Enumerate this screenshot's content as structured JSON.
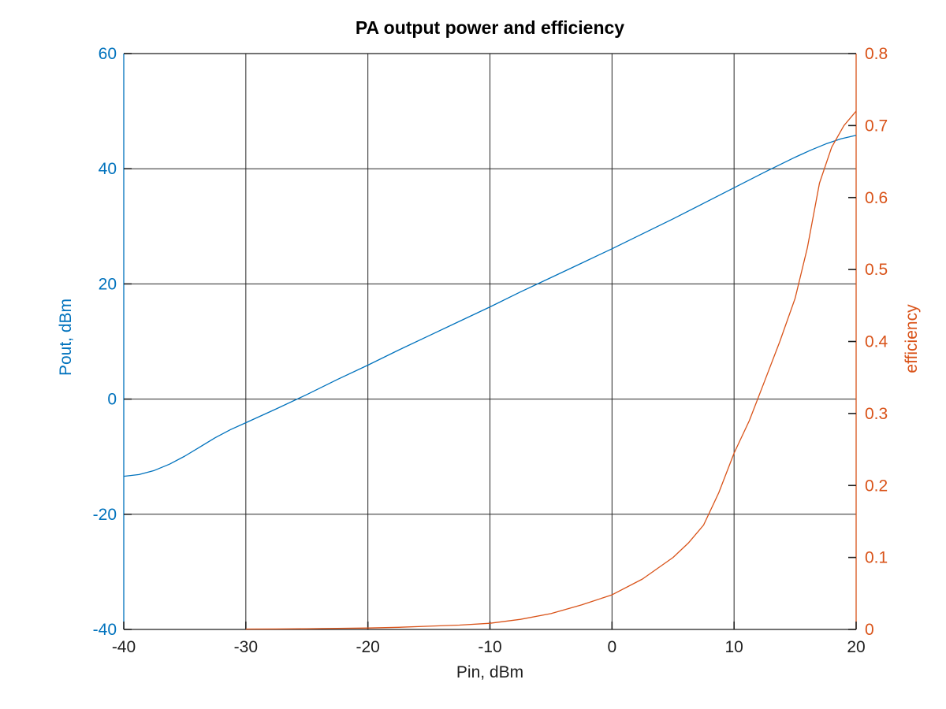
{
  "title": "PA output power and efficiency",
  "axes": {
    "x": {
      "label": "Pin, dBm",
      "min": -40,
      "max": 20,
      "ticks": [
        -40,
        -30,
        -20,
        -10,
        0,
        10,
        20
      ],
      "tick_labels": [
        "-40",
        "-30",
        "-20",
        "-10",
        "0",
        "10",
        "20"
      ],
      "grid": [
        -30,
        -20,
        -10,
        0,
        10
      ]
    },
    "y_left": {
      "label": "Pout, dBm",
      "min": -40,
      "max": 60,
      "ticks": [
        -40,
        -20,
        0,
        20,
        40,
        60
      ],
      "tick_labels": [
        "-40",
        "-20",
        "0",
        "20",
        "40",
        "60"
      ],
      "grid": [
        -20,
        0,
        20,
        40
      ],
      "color": "#0072BD"
    },
    "y_right": {
      "label": "efficiency",
      "min": 0,
      "max": 0.8,
      "ticks": [
        0,
        0.1,
        0.2,
        0.3,
        0.4,
        0.5,
        0.6,
        0.7,
        0.8
      ],
      "tick_labels": [
        "0",
        "0.1",
        "0.2",
        "0.3",
        "0.4",
        "0.5",
        "0.6",
        "0.7",
        "0.8"
      ],
      "grid": [],
      "color": "#D95319"
    }
  },
  "colors": {
    "box": "#1f1f1f",
    "grid": "#262626",
    "tick": "#1f1f1f",
    "x_tick_text": "#1f1f1f",
    "left_series": "#0072BD",
    "right_series": "#D95319"
  },
  "chart_data": {
    "type": "line",
    "title": "PA output power and efficiency",
    "xlabel": "Pin, dBm",
    "ylabel_left": "Pout, dBm",
    "ylabel_right": "efficiency",
    "x_range": [
      -40,
      20
    ],
    "y_left_range": [
      -40,
      60
    ],
    "y_right_range": [
      0,
      0.8
    ],
    "grid": "on",
    "legend": "none",
    "series": [
      {
        "name": "Pout, dBm",
        "axis": "left",
        "color": "#0072BD",
        "x": [
          -40,
          -38.75,
          -37.5,
          -36.25,
          -35,
          -33.75,
          -32.5,
          -31.25,
          -30,
          -27.5,
          -25,
          -22.5,
          -20,
          -17.5,
          -15,
          -12.5,
          -10,
          -7.5,
          -5,
          -2.5,
          0,
          2.5,
          5,
          7.5,
          10,
          12.5,
          15,
          16.25,
          17.5,
          18.75,
          20
        ],
        "y": [
          -13.4,
          -13.1,
          -12.4,
          -11.3,
          -9.9,
          -8.3,
          -6.7,
          -5.3,
          -4.1,
          -1.7,
          0.8,
          3.4,
          5.9,
          8.5,
          11.0,
          13.5,
          16.0,
          18.6,
          21.1,
          23.6,
          26.1,
          28.7,
          31.3,
          34.0,
          36.7,
          39.4,
          42.0,
          43.2,
          44.3,
          45.2,
          45.8
        ]
      },
      {
        "name": "efficiency",
        "axis": "right",
        "color": "#D95319",
        "x": [
          -30,
          -27.5,
          -25,
          -22.5,
          -20,
          -17.5,
          -15,
          -12.5,
          -10,
          -7.5,
          -5,
          -2.5,
          0,
          2.5,
          5,
          6.25,
          7.5,
          8.75,
          10,
          11.25,
          12.5,
          13.75,
          15,
          16,
          17,
          18,
          19,
          20
        ],
        "y": [
          0.0005,
          0.0007,
          0.001,
          0.0015,
          0.002,
          0.003,
          0.0045,
          0.006,
          0.0085,
          0.014,
          0.022,
          0.034,
          0.048,
          0.07,
          0.1,
          0.12,
          0.145,
          0.19,
          0.245,
          0.29,
          0.345,
          0.4,
          0.46,
          0.53,
          0.62,
          0.67,
          0.7,
          0.72
        ]
      }
    ]
  }
}
